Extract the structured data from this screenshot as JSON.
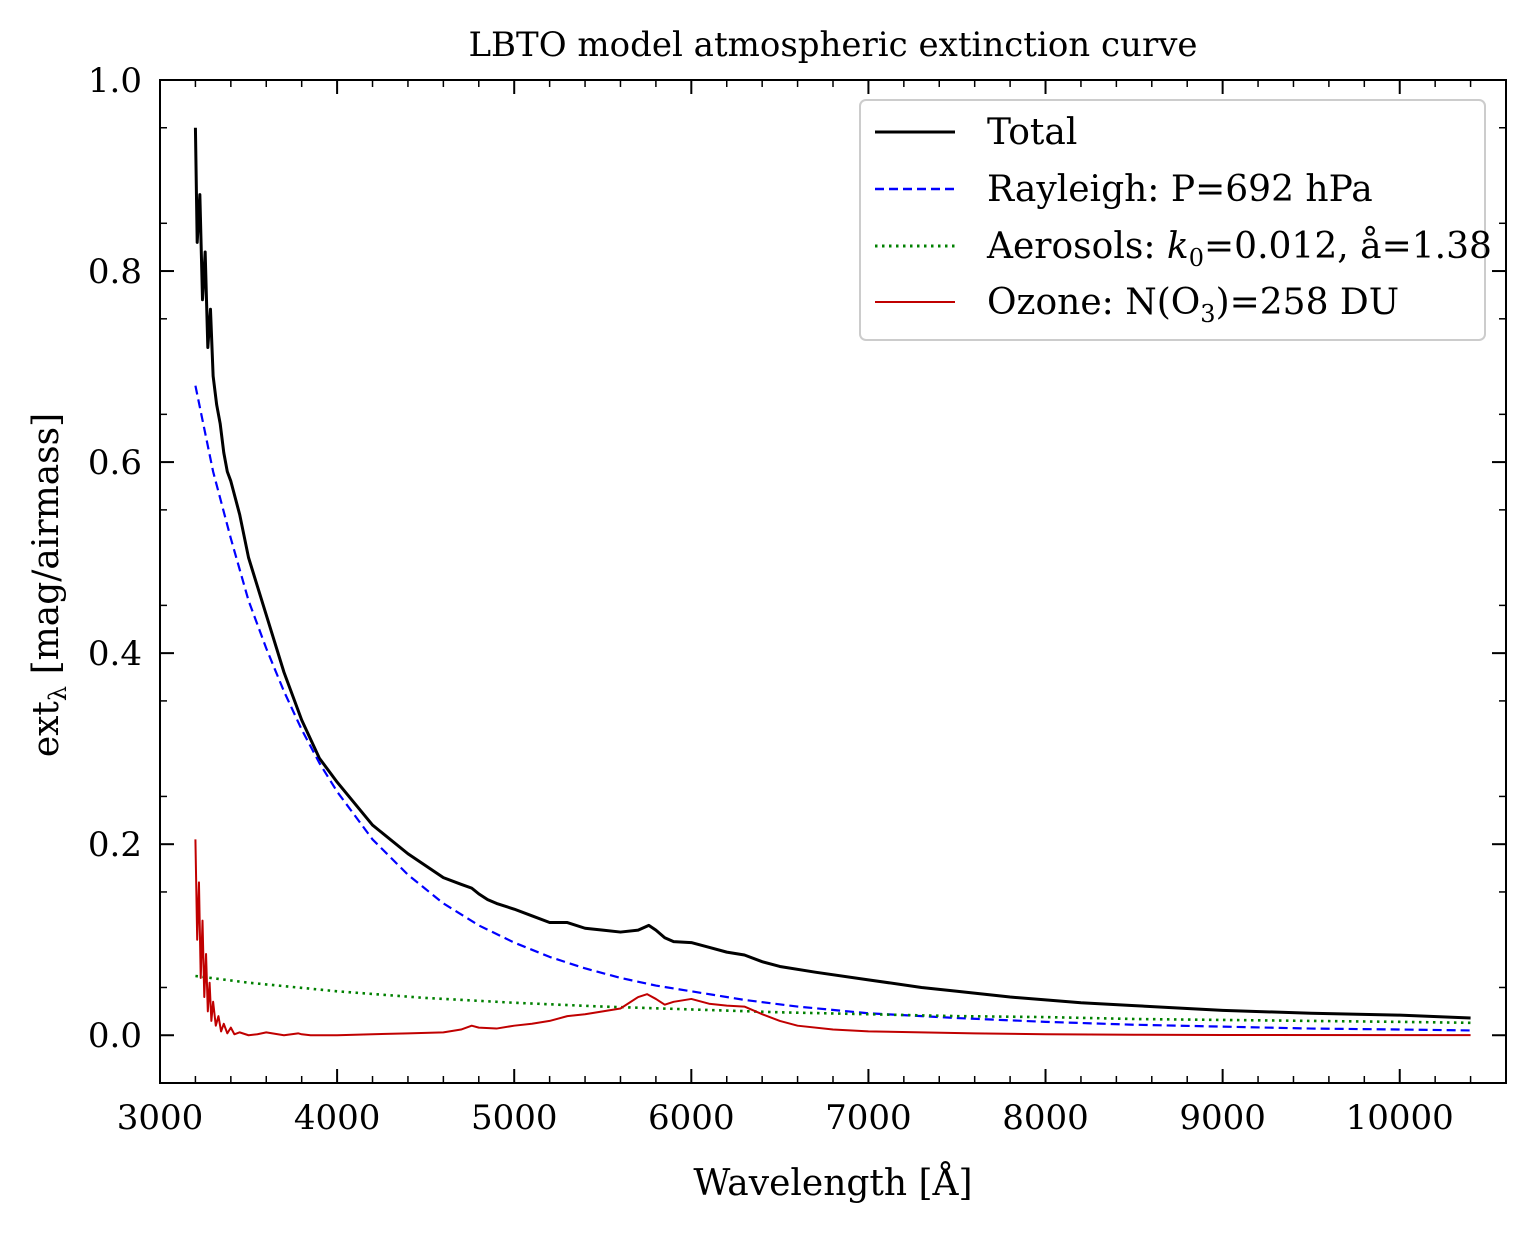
{
  "chart_data": {
    "type": "line",
    "title": "LBTO model atmospheric extinction curve",
    "xlabel": "Wavelength [Å]",
    "ylabel": "ext_λ [mag/airmass]",
    "xlim": [
      3000,
      10600
    ],
    "ylim": [
      -0.05,
      1.0
    ],
    "xticks": [
      3000,
      4000,
      5000,
      6000,
      7000,
      8000,
      9000,
      10000
    ],
    "yticks": [
      0.0,
      0.2,
      0.4,
      0.6,
      0.8,
      1.0
    ],
    "ytick_labels": [
      "0.0",
      "0.2",
      "0.4",
      "0.6",
      "0.8",
      "1.0"
    ],
    "grid": false,
    "legend_position": "top-right",
    "series": [
      {
        "name": "Total",
        "color": "#000000",
        "style": "solid",
        "x": [
          3200,
          3210,
          3225,
          3240,
          3255,
          3270,
          3285,
          3300,
          3320,
          3340,
          3360,
          3380,
          3400,
          3450,
          3500,
          3550,
          3600,
          3700,
          3800,
          3900,
          4000,
          4200,
          4400,
          4600,
          4700,
          4760,
          4800,
          4850,
          4900,
          5000,
          5100,
          5200,
          5300,
          5400,
          5500,
          5600,
          5700,
          5760,
          5800,
          5850,
          5900,
          6000,
          6100,
          6200,
          6300,
          6400,
          6500,
          6700,
          7000,
          7300,
          7500,
          7800,
          8000,
          8200,
          8500,
          8800,
          9000,
          9500,
          10000,
          10400
        ],
        "y": [
          0.95,
          0.83,
          0.88,
          0.77,
          0.82,
          0.72,
          0.76,
          0.69,
          0.66,
          0.64,
          0.61,
          0.59,
          0.58,
          0.545,
          0.5,
          0.47,
          0.44,
          0.38,
          0.33,
          0.29,
          0.265,
          0.22,
          0.19,
          0.165,
          0.158,
          0.154,
          0.148,
          0.142,
          0.138,
          0.132,
          0.125,
          0.118,
          0.118,
          0.112,
          0.11,
          0.108,
          0.11,
          0.115,
          0.11,
          0.102,
          0.098,
          0.097,
          0.092,
          0.087,
          0.084,
          0.077,
          0.072,
          0.066,
          0.058,
          0.05,
          0.046,
          0.04,
          0.037,
          0.034,
          0.031,
          0.028,
          0.026,
          0.023,
          0.021,
          0.018
        ]
      },
      {
        "name": "Rayleigh: P=692 hPa",
        "color": "#0000ff",
        "style": "dashed",
        "x": [
          3200,
          3300,
          3400,
          3500,
          3600,
          3700,
          3800,
          3900,
          4000,
          4200,
          4400,
          4600,
          4800,
          5000,
          5200,
          5400,
          5600,
          5800,
          6000,
          6300,
          6600,
          7000,
          7500,
          8000,
          8500,
          9000,
          9500,
          10000,
          10400
        ],
        "y": [
          0.68,
          0.59,
          0.52,
          0.455,
          0.405,
          0.36,
          0.32,
          0.285,
          0.255,
          0.205,
          0.168,
          0.138,
          0.115,
          0.097,
          0.082,
          0.07,
          0.06,
          0.052,
          0.046,
          0.037,
          0.03,
          0.023,
          0.018,
          0.014,
          0.011,
          0.009,
          0.007,
          0.006,
          0.005
        ]
      },
      {
        "name": "Aerosols: k0=0.012, å=1.38",
        "color": "#008000",
        "style": "dotted",
        "x": [
          3200,
          3500,
          4000,
          4500,
          5000,
          5500,
          6000,
          6500,
          7000,
          7500,
          8000,
          8500,
          9000,
          9500,
          10000,
          10400
        ],
        "y": [
          0.062,
          0.055,
          0.046,
          0.039,
          0.034,
          0.03,
          0.027,
          0.024,
          0.022,
          0.02,
          0.019,
          0.017,
          0.016,
          0.015,
          0.014,
          0.013
        ]
      },
      {
        "name": "Ozone: N(O3)=258 DU",
        "color": "#c00000",
        "style": "solid",
        "x": [
          3200,
          3210,
          3220,
          3230,
          3240,
          3250,
          3260,
          3270,
          3280,
          3290,
          3300,
          3315,
          3330,
          3345,
          3360,
          3380,
          3400,
          3420,
          3450,
          3500,
          3550,
          3600,
          3700,
          3780,
          3800,
          3850,
          4000,
          4200,
          4400,
          4600,
          4700,
          4760,
          4800,
          4900,
          5000,
          5100,
          5200,
          5300,
          5400,
          5500,
          5600,
          5700,
          5750,
          5800,
          5850,
          5900,
          6000,
          6100,
          6200,
          6300,
          6400,
          6500,
          6600,
          6800,
          7000,
          7300,
          7600,
          8000,
          8500,
          9000,
          10000,
          10400
        ],
        "y": [
          0.205,
          0.1,
          0.16,
          0.06,
          0.12,
          0.04,
          0.085,
          0.025,
          0.055,
          0.015,
          0.035,
          0.01,
          0.02,
          0.004,
          0.012,
          0.002,
          0.008,
          0.001,
          0.003,
          0.0,
          0.001,
          0.003,
          0.0,
          0.002,
          0.001,
          0.0,
          0.0,
          0.001,
          0.002,
          0.003,
          0.006,
          0.01,
          0.008,
          0.007,
          0.01,
          0.012,
          0.015,
          0.02,
          0.022,
          0.025,
          0.028,
          0.04,
          0.043,
          0.038,
          0.032,
          0.035,
          0.038,
          0.033,
          0.031,
          0.03,
          0.022,
          0.015,
          0.01,
          0.006,
          0.004,
          0.003,
          0.002,
          0.001,
          0.0005,
          0.0003,
          0.0001,
          0.0001
        ]
      }
    ]
  }
}
